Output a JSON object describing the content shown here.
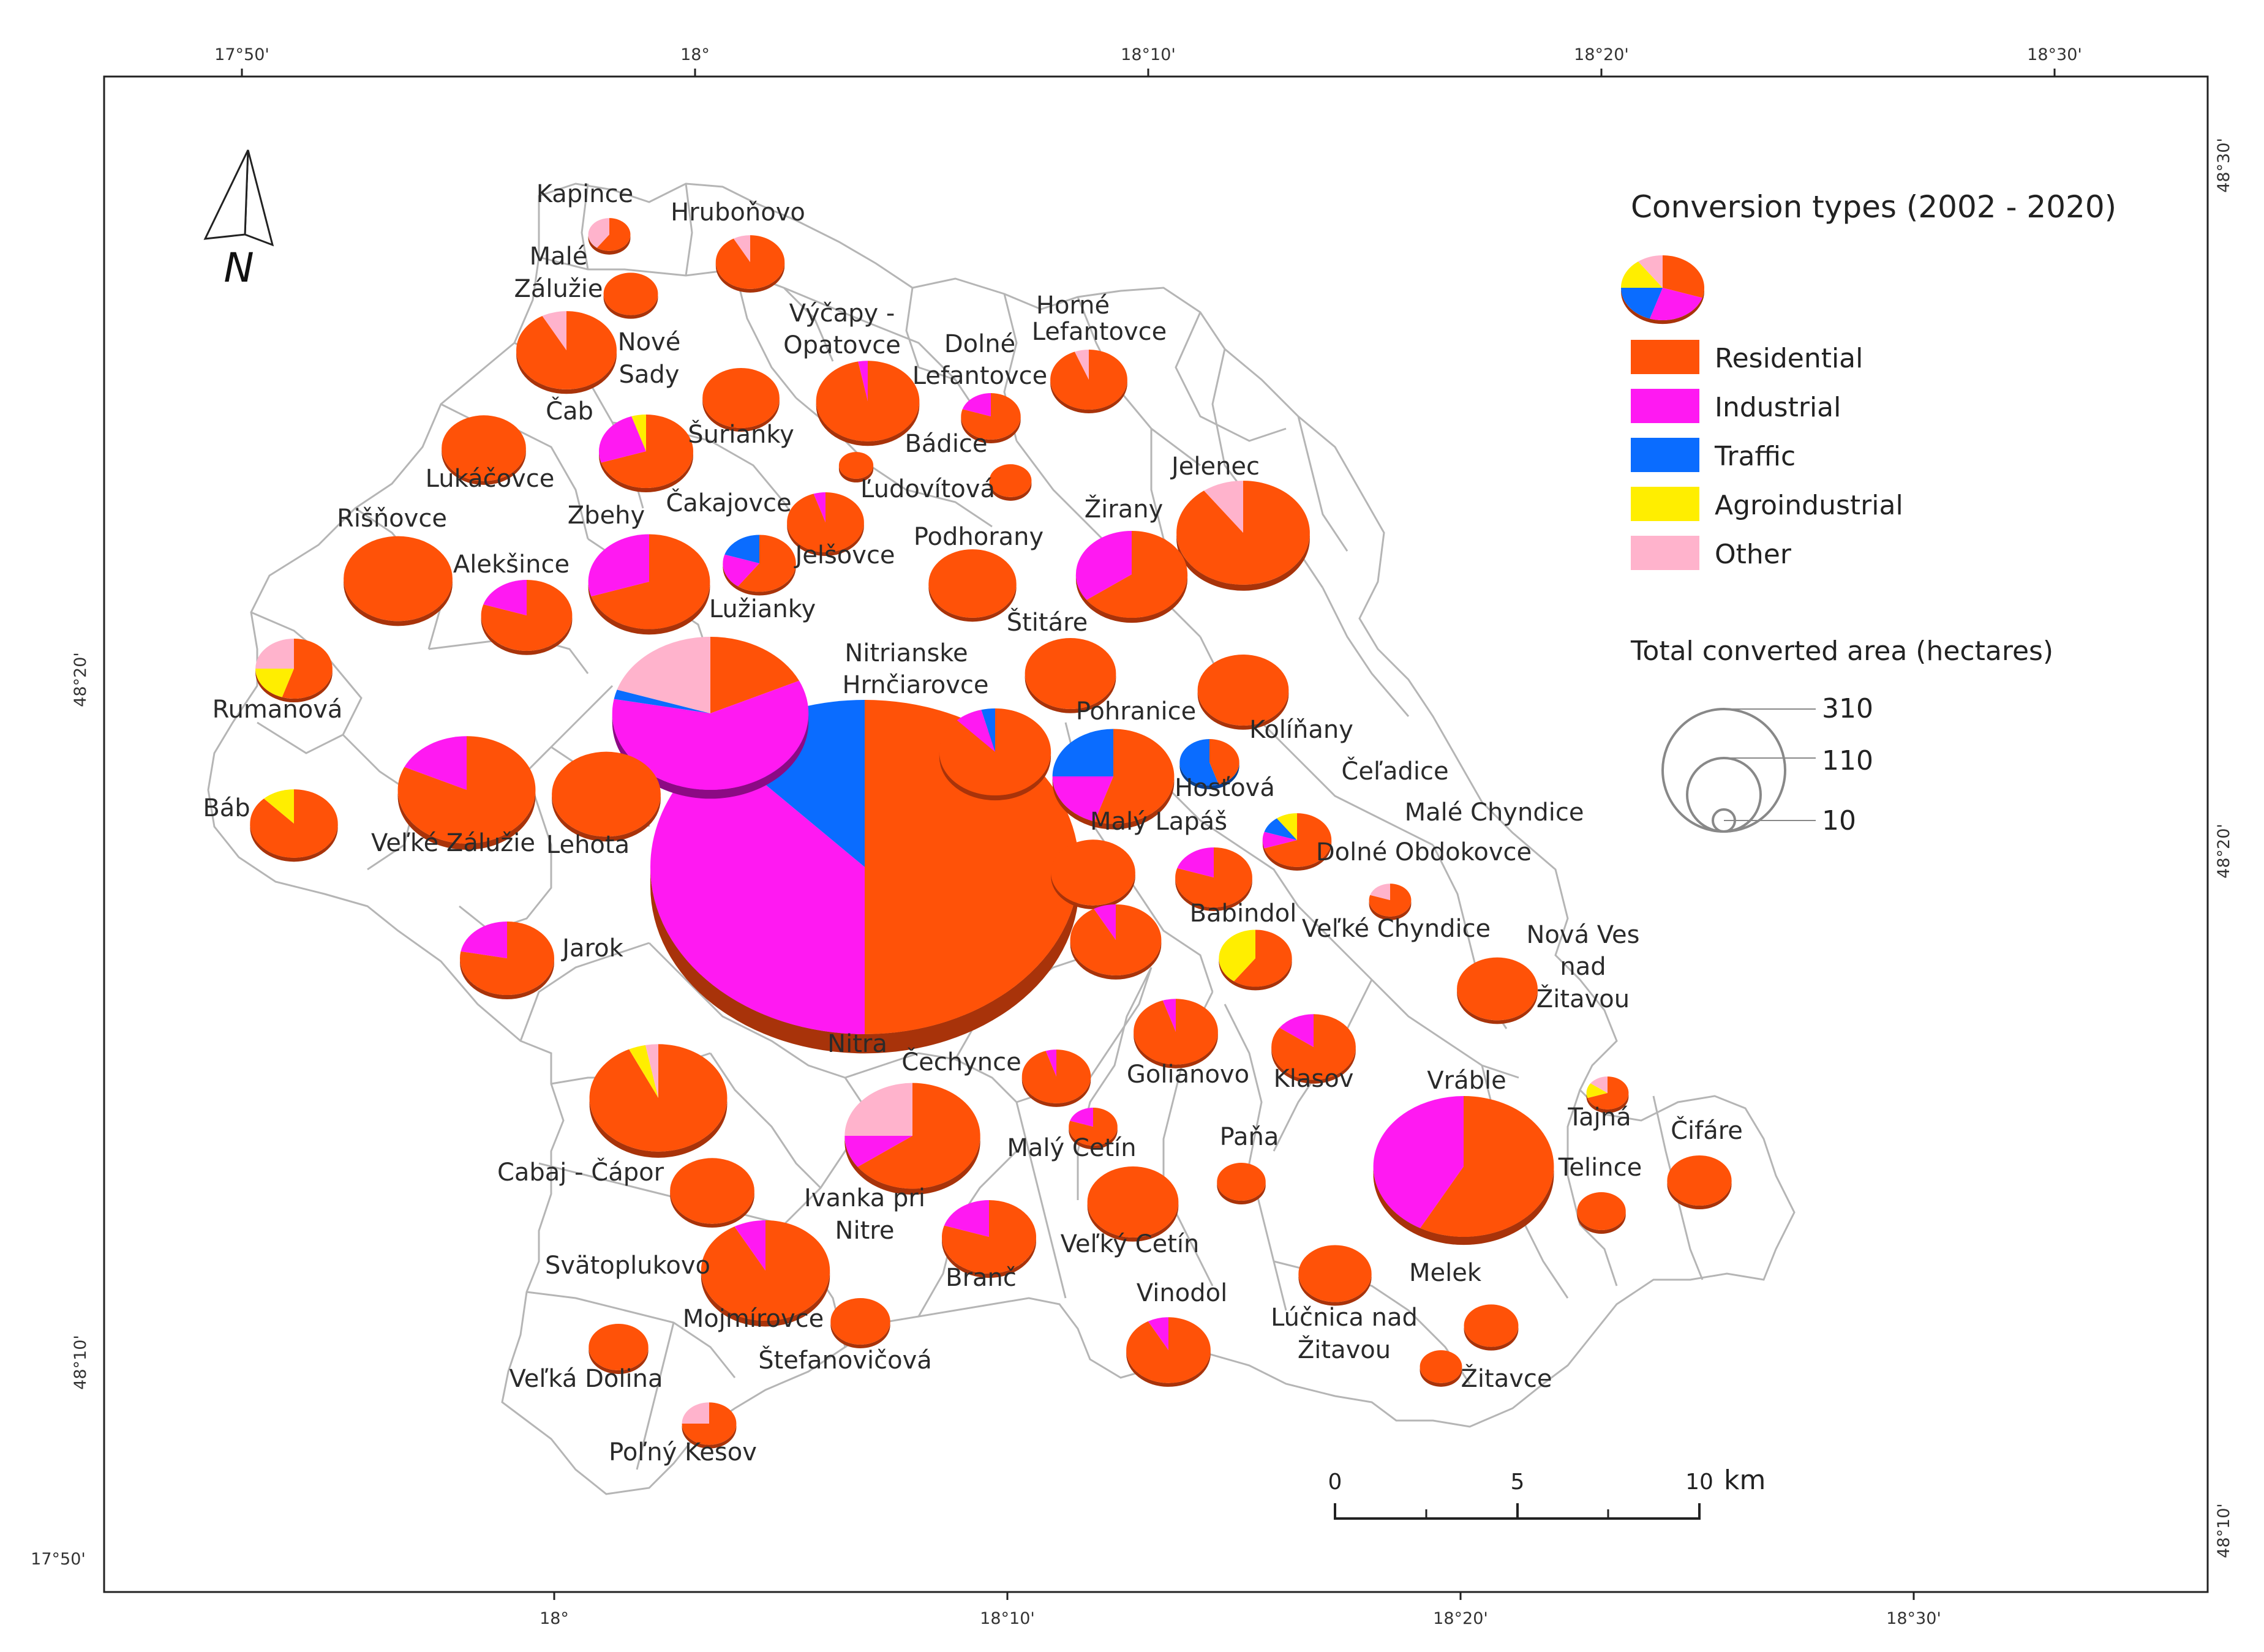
{
  "colors": {
    "residential": "#ff5208",
    "industrial": "#ff19f2",
    "traffic": "#0a6cff",
    "agroindustrial": "#ffee00",
    "other": "#ffb3cc",
    "boundary": "#b5b5b5"
  },
  "coordinates": {
    "top": [
      "17°50'",
      "18°",
      "18°10'",
      "18°20'",
      "18°30'"
    ],
    "bottom": [
      "18°",
      "18°10'",
      "18°20'",
      "18°30'"
    ],
    "left": [
      "48°20'",
      "48°10'",
      "17°50'"
    ],
    "right": [
      "48°30'",
      "48°20'",
      "48°10'"
    ]
  },
  "north_arrow": "N",
  "legend": {
    "title": "Conversion types (2002 - 2020)",
    "items": [
      {
        "key": "residential",
        "label": "Residential"
      },
      {
        "key": "industrial",
        "label": "Industrial"
      },
      {
        "key": "traffic",
        "label": "Traffic"
      },
      {
        "key": "agroindustrial",
        "label": "Agroindustrial"
      },
      {
        "key": "other",
        "label": "Other"
      }
    ],
    "size_title": "Total converted area (hectares)",
    "size_values": [
      "310",
      "110",
      "10"
    ]
  },
  "scale_bar": {
    "labels": [
      "0",
      "5",
      "10"
    ],
    "unit": "km"
  },
  "municipalities": [
    {
      "name": "Nitra",
      "area": 310,
      "shares": [
        50,
        38,
        12,
        0,
        0
      ]
    },
    {
      "name": "Lužianky",
      "area": 65,
      "shares": [
        18,
        60,
        2,
        0,
        20
      ]
    },
    {
      "name": "Vráble",
      "area": 55,
      "shares": [
        58,
        42,
        0,
        0,
        0
      ]
    },
    {
      "name": "Jelenec",
      "area": 30,
      "shares": [
        90,
        0,
        0,
        0,
        10
      ]
    },
    {
      "name": "Kapince",
      "area": 3,
      "shares": [
        60,
        0,
        0,
        0,
        40
      ]
    },
    {
      "name": "Hruboňovo",
      "area": 8,
      "shares": [
        92,
        0,
        0,
        0,
        8
      ]
    },
    {
      "name": "Malé Zálužie",
      "area": 5,
      "shares": [
        100,
        0,
        0,
        0,
        0
      ]
    },
    {
      "name": "Nové Sady",
      "area": 17,
      "shares": [
        92,
        0,
        0,
        0,
        8
      ]
    },
    {
      "name": "Výčapy - Opatovce",
      "area": 18,
      "shares": [
        97,
        3,
        0,
        0,
        0
      ]
    },
    {
      "name": "Dolné Lefantovce",
      "area": 6,
      "shares": [
        80,
        20,
        0,
        0,
        0
      ]
    },
    {
      "name": "Horné Lefantovce",
      "area": 10,
      "shares": [
        94,
        0,
        0,
        0,
        6
      ]
    },
    {
      "name": "Čab",
      "area": 10,
      "shares": [
        100,
        0,
        0,
        0,
        0
      ]
    },
    {
      "name": "Šurianky",
      "area": 15,
      "shares": [
        70,
        25,
        0,
        5,
        0
      ]
    },
    {
      "name": "Bádice",
      "area": 2,
      "shares": [
        100,
        0,
        0,
        0,
        0
      ]
    },
    {
      "name": "Ľudovítová",
      "area": 3,
      "shares": [
        100,
        0,
        0,
        0,
        0
      ]
    },
    {
      "name": "Lukáčovce",
      "area": 12,
      "shares": [
        100,
        0,
        0,
        0,
        0
      ]
    },
    {
      "name": "Čakajovce",
      "area": 10,
      "shares": [
        95,
        5,
        0,
        0,
        0
      ]
    },
    {
      "name": "Jelšovce",
      "area": 9,
      "shares": [
        60,
        20,
        20,
        0,
        0
      ]
    },
    {
      "name": "Zbehy",
      "area": 25,
      "shares": [
        70,
        30,
        0,
        0,
        0
      ]
    },
    {
      "name": "Rišňovce",
      "area": 20,
      "shares": [
        100,
        0,
        0,
        0,
        0
      ]
    },
    {
      "name": "Alekšince",
      "area": 14,
      "shares": [
        80,
        20,
        0,
        0,
        0
      ]
    },
    {
      "name": "Podhorany",
      "area": 13,
      "shares": [
        100,
        0,
        0,
        0,
        0
      ]
    },
    {
      "name": "Žirany",
      "area": 21,
      "shares": [
        65,
        35,
        0,
        0,
        0
      ]
    },
    {
      "name": "Štitáre",
      "area": 14,
      "shares": [
        100,
        0,
        0,
        0,
        0
      ]
    },
    {
      "name": "Rumanová",
      "area": 10,
      "shares": [
        55,
        0,
        0,
        20,
        25
      ]
    },
    {
      "name": "Nitrianske Hrnčiarovce",
      "area": 21,
      "shares": [
        88,
        8,
        4,
        0,
        0
      ]
    },
    {
      "name": "Pohranice",
      "area": 25,
      "shares": [
        55,
        20,
        25,
        0,
        0
      ]
    },
    {
      "name": "Kolíňany",
      "area": 14,
      "shares": [
        100,
        0,
        0,
        0,
        0
      ]
    },
    {
      "name": "Hosťová",
      "area": 6,
      "shares": [
        45,
        0,
        55,
        0,
        0
      ]
    },
    {
      "name": "Veľké Zálužie",
      "area": 32,
      "shares": [
        82,
        18,
        0,
        0,
        0
      ]
    },
    {
      "name": "Lehota",
      "area": 20,
      "shares": [
        100,
        0,
        0,
        0,
        0
      ]
    },
    {
      "name": "Báb",
      "area": 13,
      "shares": [
        88,
        0,
        0,
        12,
        0
      ]
    },
    {
      "name": "Čeľadice",
      "area": 8,
      "shares": [
        70,
        10,
        10,
        10,
        0
      ]
    },
    {
      "name": "Malý Lapáš",
      "area": 12,
      "shares": [
        100,
        0,
        0,
        0,
        0
      ]
    },
    {
      "name": "Babindol",
      "area": 10,
      "shares": [
        80,
        20,
        0,
        0,
        0
      ]
    },
    {
      "name": "Malé Chyndice",
      "area": 3,
      "shares": [
        80,
        0,
        0,
        0,
        20
      ]
    },
    {
      "name": "Dolné Obdokovce",
      "area": 14,
      "shares": [
        92,
        8,
        0,
        0,
        0
      ]
    },
    {
      "name": "Veľké Chyndice",
      "area": 9,
      "shares": [
        60,
        0,
        0,
        40,
        0
      ]
    },
    {
      "name": "Nová Ves nad Žitavou",
      "area": 11,
      "shares": [
        100,
        0,
        0,
        0,
        0
      ]
    },
    {
      "name": "Jarok",
      "area": 15,
      "shares": [
        78,
        22,
        0,
        0,
        0
      ]
    },
    {
      "name": "Golianovo",
      "area": 12,
      "shares": [
        95,
        5,
        0,
        0,
        0
      ]
    },
    {
      "name": "Klasov",
      "area": 12,
      "shares": [
        85,
        15,
        0,
        0,
        0
      ]
    },
    {
      "name": "Čechynce",
      "area": 8,
      "shares": [
        95,
        5,
        0,
        0,
        0
      ]
    },
    {
      "name": "Cabaj - Čápor",
      "area": 32,
      "shares": [
        93,
        0,
        0,
        4,
        3
      ]
    },
    {
      "name": "Ivanka pri Nitre",
      "area": 31,
      "shares": [
        65,
        10,
        0,
        0,
        25
      ]
    },
    {
      "name": "Malý Cetín",
      "area": 4,
      "shares": [
        80,
        20,
        0,
        0,
        0
      ]
    },
    {
      "name": "Paňa",
      "area": 4,
      "shares": [
        100,
        0,
        0,
        0,
        0
      ]
    },
    {
      "name": "Tajná",
      "area": 3,
      "shares": [
        70,
        0,
        0,
        15,
        15
      ]
    },
    {
      "name": "Čifáre",
      "area": 7,
      "shares": [
        100,
        0,
        0,
        0,
        0
      ]
    },
    {
      "name": "Telince",
      "area": 4,
      "shares": [
        100,
        0,
        0,
        0,
        0
      ]
    },
    {
      "name": "Veľký Cetín",
      "area": 14,
      "shares": [
        100,
        0,
        0,
        0,
        0
      ]
    },
    {
      "name": "Branč",
      "area": 15,
      "shares": [
        80,
        20,
        0,
        0,
        0
      ]
    },
    {
      "name": "Svätoplukovo",
      "area": 12,
      "shares": [
        100,
        0,
        0,
        0,
        0
      ]
    },
    {
      "name": "Mojmírovce",
      "area": 28,
      "shares": [
        92,
        8,
        0,
        0,
        0
      ]
    },
    {
      "name": "Štefanovičová",
      "area": 6,
      "shares": [
        100,
        0,
        0,
        0,
        0
      ]
    },
    {
      "name": "Vinodol",
      "area": 12,
      "shares": [
        92,
        8,
        0,
        0,
        0
      ]
    },
    {
      "name": "Lúčnica nad Žitavou",
      "area": 9,
      "shares": [
        100,
        0,
        0,
        0,
        0
      ]
    },
    {
      "name": "Melek",
      "area": 5,
      "shares": [
        100,
        0,
        0,
        0,
        0
      ]
    },
    {
      "name": "Žitavce",
      "area": 3,
      "shares": [
        100,
        0,
        0,
        0,
        0
      ]
    },
    {
      "name": "Veľká Dolina",
      "area": 6,
      "shares": [
        100,
        0,
        0,
        0,
        0
      ]
    },
    {
      "name": "Poľný Kesov",
      "area": 5,
      "shares": [
        75,
        0,
        0,
        0,
        25
      ]
    }
  ]
}
